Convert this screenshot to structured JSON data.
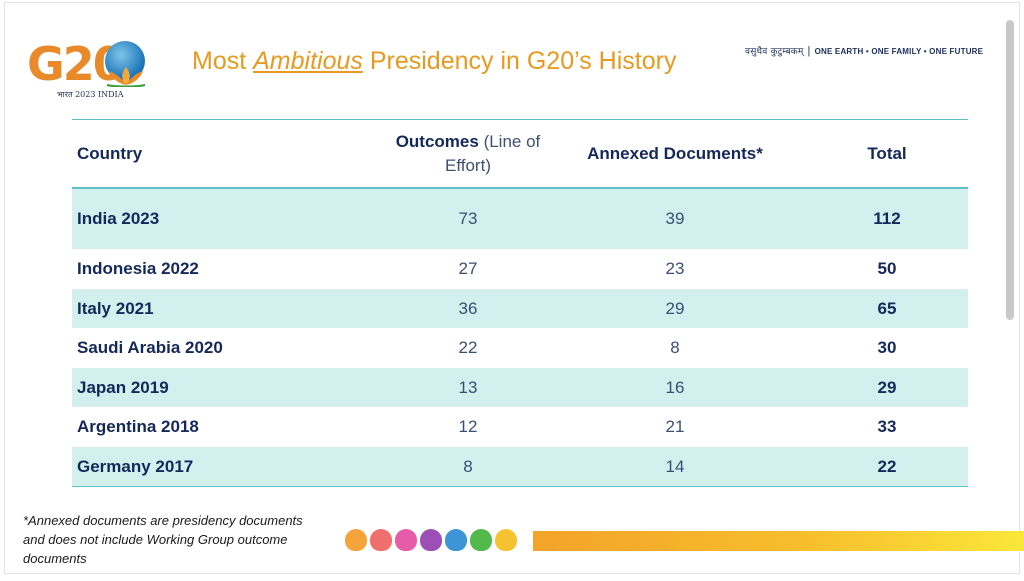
{
  "header": {
    "logo_text": "G20",
    "logo_sub": "भारत 2023 INDIA",
    "title_prefix": "Most ",
    "title_emphasis": "Ambitious",
    "title_suffix": " Presidency in G20’s History",
    "tagline_hindi": "वसुधैव कुटुम्बकम्",
    "tagline_separator": "|",
    "tagline_english": "ONE EARTH • ONE FAMILY • ONE FUTURE"
  },
  "table": {
    "headers": {
      "country": "Country",
      "outcomes_bold": "Outcomes",
      "outcomes_light": " (Line of Effort)",
      "annexed": "Annexed Documents*",
      "total": "Total"
    },
    "rows": [
      {
        "country": "India 2023",
        "outcomes": "73",
        "annexed": "39",
        "total": "112"
      },
      {
        "country": "Indonesia 2022",
        "outcomes": "27",
        "annexed": "23",
        "total": "50"
      },
      {
        "country": "Italy 2021",
        "outcomes": "36",
        "annexed": "29",
        "total": "65"
      },
      {
        "country": "Saudi Arabia 2020",
        "outcomes": "22",
        "annexed": "8",
        "total": "30"
      },
      {
        "country": "Japan 2019",
        "outcomes": "13",
        "annexed": "16",
        "total": "29"
      },
      {
        "country": "Argentina 2018",
        "outcomes": "12",
        "annexed": "21",
        "total": "33"
      },
      {
        "country": "Germany 2017",
        "outcomes": "8",
        "annexed": "14",
        "total": "22"
      }
    ]
  },
  "footnote": "*Annexed documents are presidency documents and does not include Working Group outcome documents",
  "colors": {
    "title": "#e79a1f",
    "navy": "#14285a",
    "row_shade": "#d3efee",
    "rule": "#5fbfc3",
    "lotus": [
      "#f5a43b",
      "#ef6f6c",
      "#e85ba8",
      "#9c4fb6",
      "#3d94d6",
      "#52b94a",
      "#f6c330"
    ]
  },
  "icons": {
    "logo": "g20-lotus-globe-logo",
    "lotus_row": "lotus-icon"
  }
}
